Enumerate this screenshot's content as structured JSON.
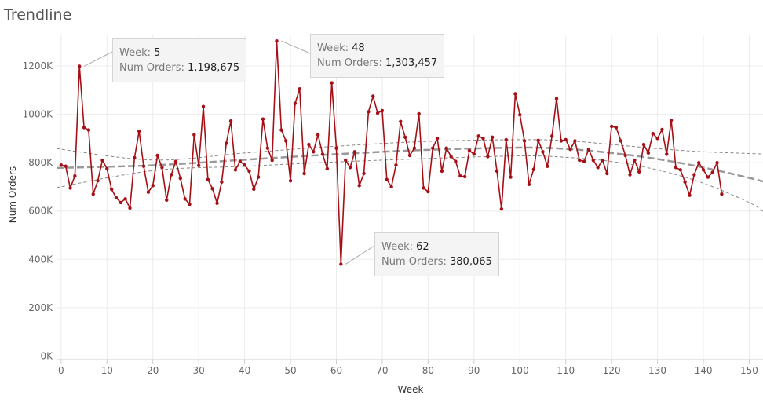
{
  "page": {
    "title": "Trendline"
  },
  "chart_data": {
    "type": "line",
    "xlabel": "Week",
    "ylabel": "Num Orders",
    "xlim": [
      -1,
      153
    ],
    "ylim": [
      -15000,
      1330000
    ],
    "x_ticks": [
      0,
      10,
      20,
      30,
      40,
      50,
      60,
      70,
      80,
      90,
      100,
      110,
      120,
      130,
      140,
      150
    ],
    "y_ticks": [
      0,
      200000,
      400000,
      600000,
      800000,
      1000000,
      1200000
    ],
    "y_tick_labels": [
      "0K",
      "200K",
      "400K",
      "600K",
      "800K",
      "1000K",
      "1200K"
    ],
    "grid": true,
    "colors": {
      "series": "#a50f15",
      "trend": "#999999",
      "band": "#888888",
      "grid": "#ececec"
    },
    "series": [
      {
        "values": [
          790000,
          785000,
          695000,
          745000,
          1198675,
          945000,
          935000,
          670000,
          725000,
          810000,
          775000,
          690000,
          655000,
          635000,
          650000,
          612000,
          820000,
          930000,
          785000,
          678000,
          705000,
          830000,
          780000,
          645000,
          750000,
          805000,
          735000,
          650000,
          628000,
          915000,
          788000,
          1032000,
          730000,
          692000,
          632000,
          720000,
          880000,
          972000,
          770000,
          805000,
          790000,
          765000,
          690000,
          740000,
          980000,
          860000,
          810000,
          1303457,
          935000,
          890000,
          725000,
          1045000,
          1105000,
          755000,
          875000,
          845000,
          915000,
          835000,
          775000,
          1130000,
          860000,
          380065,
          810000,
          780000,
          845000,
          705000,
          755000,
          1010000,
          1075000,
          1005000,
          1015000,
          730000,
          700000,
          790000,
          970000,
          905000,
          830000,
          860000,
          1002000,
          695000,
          680000,
          860000,
          900000,
          765000,
          860000,
          825000,
          805000,
          745000,
          742000,
          850000,
          835000,
          910000,
          900000,
          825000,
          905000,
          765000,
          608000,
          895000,
          740000,
          1085000,
          998000,
          890000,
          710000,
          772000,
          892000,
          845000,
          785000,
          910000,
          1065000,
          890000,
          895000,
          855000,
          890000,
          810000,
          805000,
          855000,
          810000,
          780000,
          810000,
          755000,
          950000,
          945000,
          890000,
          830000,
          750000,
          810000,
          762000,
          875000,
          840000,
          920000,
          900000,
          937000,
          835000,
          975000,
          780000,
          770000,
          720000,
          665000,
          750000,
          800000,
          770000,
          740000,
          760000,
          800000,
          670000
        ]
      }
    ],
    "trend": {
      "x": [
        -1,
        20,
        40,
        60,
        80,
        100,
        110,
        120,
        130,
        140,
        150,
        153
      ],
      "y": [
        778000,
        789000,
        812000,
        835000,
        853000,
        862000,
        857000,
        840000,
        815000,
        780000,
        737000,
        722000
      ]
    },
    "band_upper": {
      "x": [
        -1,
        20,
        40,
        60,
        80,
        100,
        110,
        120,
        130,
        140,
        150,
        153
      ],
      "y": [
        858000,
        811000,
        840000,
        868000,
        888000,
        895000,
        891000,
        875000,
        858000,
        845000,
        838000,
        836000
      ]
    },
    "band_lower": {
      "x": [
        -1,
        20,
        40,
        60,
        80,
        100,
        110,
        120,
        130,
        140,
        150,
        153
      ],
      "y": [
        697000,
        767000,
        785000,
        803000,
        817000,
        828000,
        822000,
        805000,
        770000,
        715000,
        635000,
        598000
      ]
    },
    "annotations": [
      {
        "x": 5,
        "y": 1198675,
        "week_label": "Week:",
        "week_value": "5",
        "orders_label": "Num Orders:",
        "orders_value": "1,198,675"
      },
      {
        "x": 48,
        "y": 1303457,
        "week_label": "Week:",
        "week_value": "48",
        "orders_label": "Num Orders:",
        "orders_value": "1,303,457"
      },
      {
        "x": 62,
        "y": 380065,
        "week_label": "Week:",
        "week_value": "62",
        "orders_label": "Num Orders:",
        "orders_value": "380,065"
      }
    ]
  }
}
